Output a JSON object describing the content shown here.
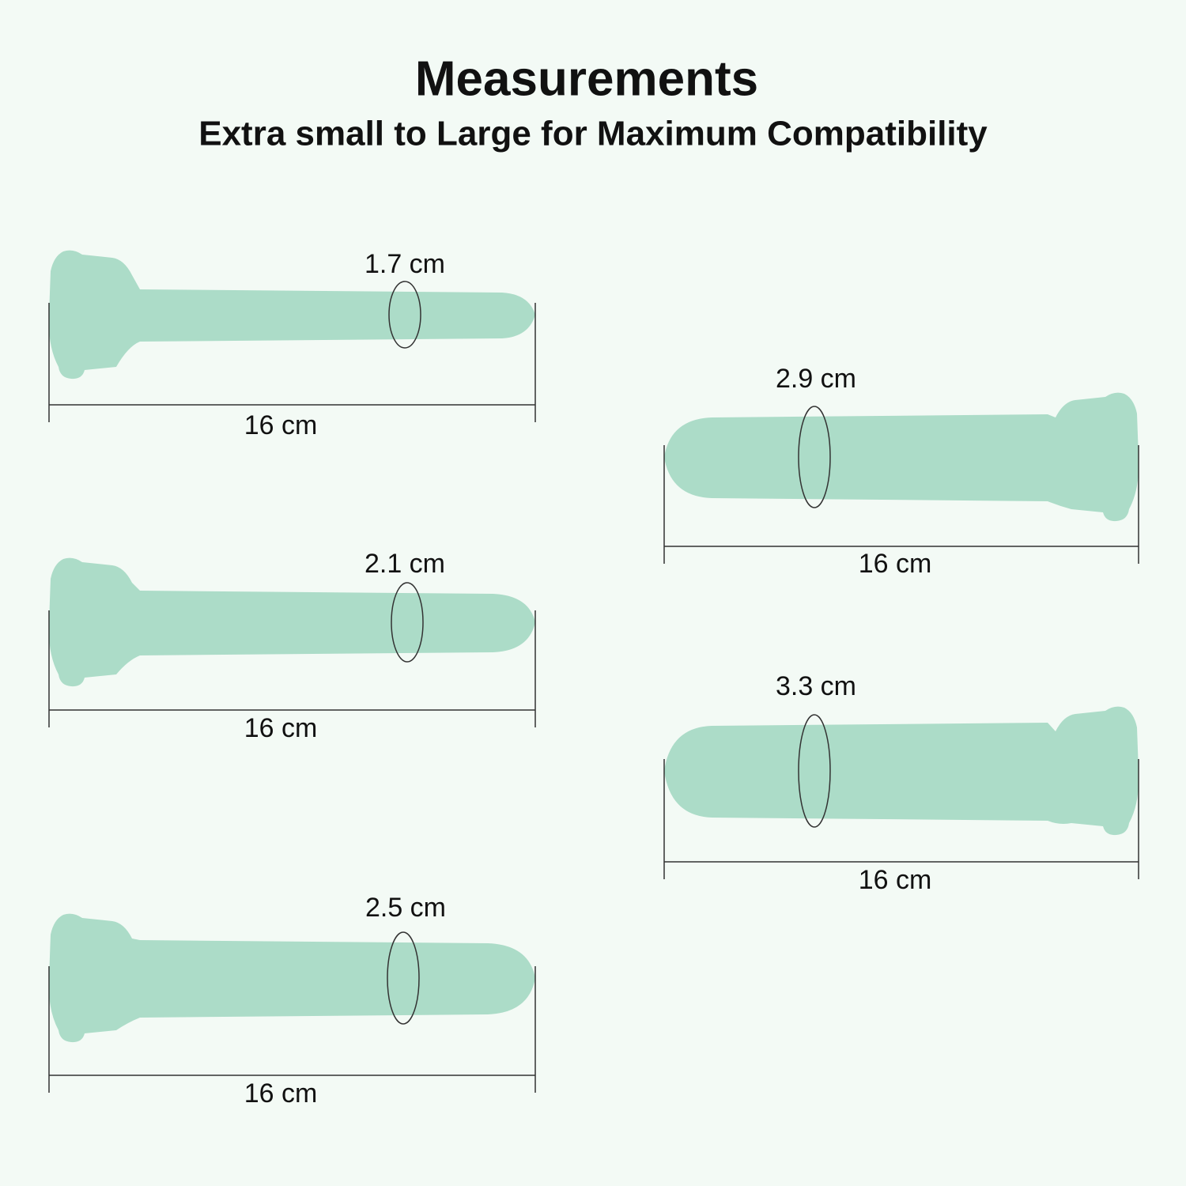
{
  "header": {
    "title": "Measurements",
    "subtitle": "Extra small to Large for Maximum Compatibility"
  },
  "items": [
    {
      "diameter": "1.7 cm",
      "length": "16 cm"
    },
    {
      "diameter": "2.1 cm",
      "length": "16 cm"
    },
    {
      "diameter": "2.5 cm",
      "length": "16 cm"
    },
    {
      "diameter": "2.9 cm",
      "length": "16 cm"
    },
    {
      "diameter": "3.3 cm",
      "length": "16 cm"
    }
  ]
}
